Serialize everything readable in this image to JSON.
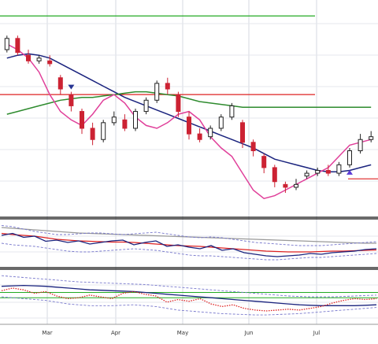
{
  "chart_data": [
    {
      "type": "candlestick",
      "panel": "price",
      "x_labels": [
        "Mar",
        "Apr",
        "May",
        "Jun",
        "Jul"
      ],
      "horizontal_lines": [
        {
          "color": "#22aa22",
          "y": 100
        },
        {
          "color": "#dd2222",
          "y": 72
        },
        {
          "color": "#dd2222",
          "y": 42
        }
      ],
      "ylim": [
        30,
        104
      ],
      "moving_averages": [
        {
          "color": "#1a237e",
          "values": [
            85,
            86,
            86.5,
            86,
            85,
            83,
            81,
            79,
            77,
            75,
            73,
            71,
            69.5,
            68,
            66.5,
            65,
            63.5,
            62,
            60.5,
            59,
            57.5,
            56,
            54.5,
            53,
            51,
            49,
            48,
            47,
            46,
            45,
            44.5,
            44.5,
            45,
            46,
            47
          ]
        },
        {
          "color": "#2e8b2e",
          "values": [
            65,
            66,
            67,
            68,
            69,
            70,
            70.5,
            71,
            71,
            71.5,
            72,
            72.5,
            73,
            73,
            72.5,
            72,
            71.5,
            70.5,
            69.5,
            69,
            68.5,
            68,
            67.5,
            67.5,
            67.5,
            67.5,
            67.5,
            67.5,
            67.5,
            67.5,
            67.5,
            67.5,
            67.5,
            67.5,
            67.5
          ]
        },
        {
          "color": "#e0409a",
          "values": [
            90,
            88,
            85,
            80,
            72,
            66,
            63,
            61,
            65,
            70,
            72,
            69,
            64,
            61,
            60,
            62,
            65,
            66,
            63,
            57,
            53,
            50,
            44,
            38,
            35,
            36,
            38,
            40,
            42,
            44,
            46,
            50,
            54,
            55,
            56
          ]
        }
      ],
      "candles": [
        {
          "o": 88,
          "c": 92,
          "h": 93,
          "l": 87
        },
        {
          "o": 92,
          "c": 87,
          "h": 93,
          "l": 86
        },
        {
          "o": 86,
          "c": 84,
          "h": 88,
          "l": 83
        },
        {
          "o": 84,
          "c": 85,
          "h": 86,
          "l": 83
        },
        {
          "o": 84,
          "c": 83,
          "h": 86,
          "l": 82
        },
        {
          "o": 78,
          "c": 74,
          "h": 79,
          "l": 72
        },
        {
          "o": 72,
          "c": 68,
          "h": 73,
          "l": 66
        },
        {
          "o": 66,
          "c": 60,
          "h": 67,
          "l": 58
        },
        {
          "o": 60,
          "c": 56,
          "h": 62,
          "l": 54
        },
        {
          "o": 56,
          "c": 62,
          "h": 63,
          "l": 55
        },
        {
          "o": 62,
          "c": 64,
          "h": 66,
          "l": 61
        },
        {
          "o": 63,
          "c": 60,
          "h": 65,
          "l": 59
        },
        {
          "o": 60,
          "c": 66,
          "h": 67,
          "l": 59
        },
        {
          "o": 66,
          "c": 70,
          "h": 71,
          "l": 65
        },
        {
          "o": 70,
          "c": 76,
          "h": 77,
          "l": 69
        },
        {
          "o": 76,
          "c": 74,
          "h": 78,
          "l": 72
        },
        {
          "o": 72,
          "c": 66,
          "h": 73,
          "l": 64
        },
        {
          "o": 64,
          "c": 58,
          "h": 66,
          "l": 56
        },
        {
          "o": 58,
          "c": 56,
          "h": 60,
          "l": 55
        },
        {
          "o": 57,
          "c": 60,
          "h": 61,
          "l": 56
        },
        {
          "o": 60,
          "c": 64,
          "h": 65,
          "l": 59
        },
        {
          "o": 64,
          "c": 68,
          "h": 69,
          "l": 63
        },
        {
          "o": 62,
          "c": 55,
          "h": 63,
          "l": 53
        },
        {
          "o": 55,
          "c": 52,
          "h": 56,
          "l": 50
        },
        {
          "o": 50,
          "c": 46,
          "h": 51,
          "l": 44
        },
        {
          "o": 46,
          "c": 41,
          "h": 47,
          "l": 39
        },
        {
          "o": 40,
          "c": 39,
          "h": 41,
          "l": 37
        },
        {
          "o": 39,
          "c": 40,
          "h": 42,
          "l": 38
        },
        {
          "o": 43,
          "c": 44,
          "h": 45,
          "l": 42
        },
        {
          "o": 44,
          "c": 45,
          "h": 46,
          "l": 43
        },
        {
          "o": 45,
          "c": 44,
          "h": 47,
          "l": 43
        },
        {
          "o": 44,
          "c": 47,
          "h": 48,
          "l": 43
        },
        {
          "o": 47,
          "c": 52,
          "h": 53,
          "l": 46
        },
        {
          "o": 52,
          "c": 56,
          "h": 58,
          "l": 51
        },
        {
          "o": 56,
          "c": 57,
          "h": 59,
          "l": 55
        }
      ],
      "annotations": [
        {
          "type": "triangle-down",
          "color": "#283593",
          "index": 6
        },
        {
          "type": "triangle-up",
          "color": "#5c3bd6",
          "index": 32
        }
      ]
    },
    {
      "type": "line",
      "panel": "indicator-1",
      "ylim": [
        0,
        10
      ],
      "series": [
        {
          "color": "#999999",
          "style": "solid",
          "values": [
            9,
            8.8,
            8.6,
            8.4,
            8.2,
            8,
            7.8,
            7.6,
            7.5,
            7.4,
            7.3,
            7.2,
            7.1,
            7,
            6.9,
            6.8,
            6.7,
            6.6,
            6.5,
            6.4,
            6.3,
            6.2,
            6.1,
            6,
            5.9,
            5.8,
            5.7,
            5.6,
            5.5,
            5.4,
            5.3,
            5.2,
            5.1,
            5,
            5
          ]
        },
        {
          "color": "#dd2222",
          "style": "solid",
          "values": [
            7.5,
            7.2,
            7,
            6.8,
            6.4,
            6,
            5.8,
            5.6,
            5.5,
            5.4,
            5.3,
            5.3,
            5.2,
            5,
            4.8,
            4.6,
            4.4,
            4.3,
            4.2,
            4,
            3.8,
            3.6,
            3.4,
            3.2,
            3,
            2.9,
            2.8,
            2.8,
            2.8,
            2.9,
            3,
            3,
            3.1,
            3.2,
            3.3
          ]
        },
        {
          "color": "#1a237e",
          "style": "solid",
          "values": [
            7,
            7.5,
            6.5,
            6.8,
            5.5,
            5.8,
            5.2,
            5.6,
            4.8,
            5.2,
            5.6,
            5.8,
            4.6,
            5.2,
            5.6,
            4.2,
            4.6,
            4,
            3.6,
            4.4,
            3.2,
            3.6,
            2.6,
            2.2,
            1.8,
            1.6,
            1.8,
            2,
            2.4,
            2.2,
            2.6,
            2.8,
            3,
            3.4,
            3.6
          ]
        },
        {
          "color": "#7777cc",
          "style": "dashed",
          "values": [
            9.5,
            9.2,
            8.6,
            8,
            7.6,
            7.2,
            7.2,
            7.4,
            7.6,
            7.6,
            7.4,
            7.2,
            7.4,
            7.6,
            7.8,
            7.4,
            7,
            6.6,
            6.4,
            6.6,
            6.4,
            6,
            5.6,
            5.2,
            5,
            4.8,
            4.6,
            4.4,
            4.4,
            4.4,
            4.6,
            4.8,
            5,
            5.2,
            5.4
          ]
        },
        {
          "color": "#7777cc",
          "style": "dashed",
          "values": [
            5,
            4.6,
            4.4,
            4.2,
            3.8,
            3.4,
            3,
            2.8,
            2.8,
            3,
            3.2,
            3.4,
            3.6,
            3.4,
            3.2,
            2.8,
            2.4,
            2,
            1.8,
            1.8,
            1.6,
            1.4,
            1.2,
            1,
            0.8,
            0.8,
            1,
            1.2,
            1.4,
            1.4,
            1.6,
            1.8,
            2,
            2.2,
            2.4
          ]
        }
      ]
    },
    {
      "type": "line",
      "panel": "indicator-2",
      "ylim": [
        0,
        10
      ],
      "horizontal_lines": [
        {
          "color": "#22aa22",
          "y": 5.8
        },
        {
          "color": "#22aa22",
          "y": 4.6
        }
      ],
      "series": [
        {
          "color": "#1a237e",
          "style": "solid",
          "values": [
            7.2,
            7.3,
            7.4,
            7.3,
            7.2,
            7,
            6.8,
            6.6,
            6.4,
            6.3,
            6.2,
            6.1,
            6,
            5.8,
            5.6,
            5.4,
            5.2,
            5,
            4.8,
            4.6,
            4.4,
            4.2,
            4,
            3.8,
            3.6,
            3.4,
            3.2,
            3,
            2.9,
            2.8,
            2.8,
            2.8,
            2.8,
            2.9,
            3
          ]
        },
        {
          "color": "#dd2222",
          "style": "dotted",
          "values": [
            6.2,
            6.8,
            6.4,
            5.6,
            6,
            5,
            4.4,
            4.6,
            5.2,
            4.8,
            4.4,
            5.6,
            6,
            5.4,
            5,
            3.6,
            4.2,
            3.8,
            4.4,
            3.2,
            2.6,
            3,
            2.2,
            1.8,
            1.6,
            1.8,
            2,
            1.8,
            2.2,
            2.6,
            3.4,
            4,
            4.4,
            4.2,
            4.4
          ]
        },
        {
          "color": "#7777cc",
          "style": "dashed",
          "values": [
            9.6,
            9.4,
            9.2,
            9,
            8.8,
            8.6,
            8.4,
            8.2,
            8.1,
            8,
            7.9,
            7.8,
            7.7,
            7.6,
            7.4,
            7.2,
            7,
            6.8,
            6.6,
            6.4,
            6.2,
            6,
            5.8,
            5.6,
            5.4,
            5.2,
            5,
            4.9,
            4.8,
            4.8,
            4.8,
            4.9,
            5,
            5.1,
            5.2
          ]
        },
        {
          "color": "#7777cc",
          "style": "dashed",
          "values": [
            4.8,
            4.6,
            4.4,
            4.2,
            4,
            3.6,
            3.2,
            3,
            2.8,
            2.8,
            2.8,
            2.9,
            3,
            2.8,
            2.6,
            2.2,
            1.8,
            1.6,
            1.4,
            1.2,
            1,
            0.9,
            0.8,
            0.7,
            0.7,
            0.8,
            0.9,
            1,
            1.2,
            1.4,
            1.6,
            1.8,
            2,
            2.2,
            2.4
          ]
        }
      ]
    }
  ]
}
